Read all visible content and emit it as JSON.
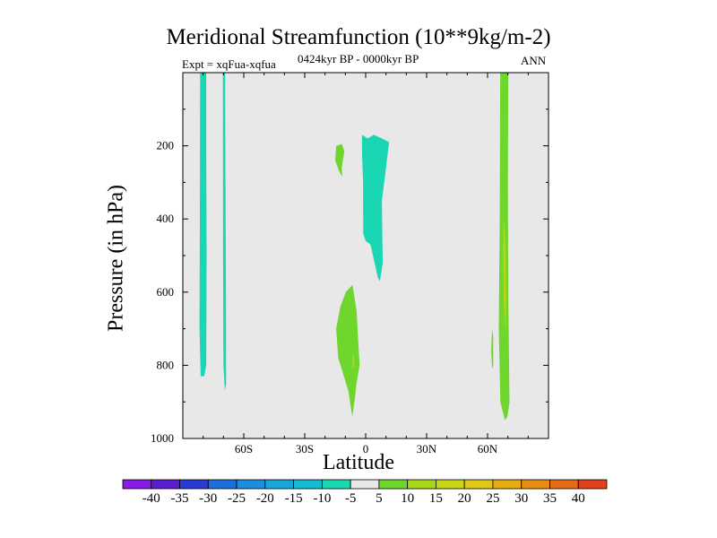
{
  "chart_data": {
    "type": "contour",
    "title": "Meridional Streamfunction (10**9kg/m-2)",
    "subtitle_left": "Expt = xqFua-xqfua",
    "subtitle_center": "0424kyr BP - 0000kyr BP",
    "subtitle_right": "ANN",
    "xlabel": "Latitude",
    "ylabel": "Pressure (in hPa)",
    "xlim": [
      -90,
      90
    ],
    "ylim": [
      1000,
      0
    ],
    "x_ticks": [
      {
        "value": -60,
        "label": "60S"
      },
      {
        "value": -30,
        "label": "30S"
      },
      {
        "value": 0,
        "label": "0"
      },
      {
        "value": 30,
        "label": "30N"
      },
      {
        "value": 60,
        "label": "60N"
      }
    ],
    "y_ticks": [
      {
        "value": 200,
        "label": "200"
      },
      {
        "value": 400,
        "label": "400"
      },
      {
        "value": 600,
        "label": "600"
      },
      {
        "value": 800,
        "label": "800"
      },
      {
        "value": 1000,
        "label": "1000"
      }
    ],
    "background_color": "#e8e8e8",
    "regions": [
      {
        "name": "neg-band-75S",
        "level": -5,
        "color": "#1ad7b3",
        "outline": [
          [
            -81.5,
            0
          ],
          [
            -78.5,
            0
          ],
          [
            -78.5,
            200
          ],
          [
            -78.3,
            500
          ],
          [
            -78.5,
            800
          ],
          [
            -79.5,
            830
          ],
          [
            -81.2,
            830
          ],
          [
            -81.8,
            700
          ],
          [
            -81.6,
            400
          ]
        ]
      },
      {
        "name": "neg-band-68S",
        "level": -5,
        "color": "#1ad7b3",
        "outline": [
          [
            -70.3,
            0
          ],
          [
            -69.2,
            0
          ],
          [
            -69,
            300
          ],
          [
            -68.8,
            600
          ],
          [
            -68.7,
            850
          ],
          [
            -69.3,
            870
          ],
          [
            -70,
            800
          ],
          [
            -70.2,
            500
          ]
        ]
      },
      {
        "name": "neg-upper-equator",
        "level": -5,
        "color": "#1ad7b3",
        "outline": [
          [
            -1.8,
            170
          ],
          [
            1,
            180
          ],
          [
            4,
            170
          ],
          [
            8,
            180
          ],
          [
            11.5,
            190
          ],
          [
            10,
            260
          ],
          [
            8,
            350
          ],
          [
            8.4,
            520
          ],
          [
            7,
            570
          ],
          [
            6,
            560
          ],
          [
            2.4,
            470
          ],
          [
            0,
            460
          ],
          [
            -1.2,
            440
          ],
          [
            -1.3,
            300
          ],
          [
            -1.8,
            220
          ]
        ]
      },
      {
        "name": "pos-upper-15S",
        "level": 5,
        "color": "#6ed62d",
        "outline": [
          [
            -14.5,
            200
          ],
          [
            -11.7,
            195
          ],
          [
            -10.5,
            215
          ],
          [
            -11.8,
            260
          ],
          [
            -11.5,
            285
          ],
          [
            -13,
            270
          ],
          [
            -15,
            240
          ]
        ]
      },
      {
        "name": "pos-lower-10S",
        "level": 5,
        "color": "#6ed62d",
        "outline": [
          [
            -12.5,
            640
          ],
          [
            -9.8,
            600
          ],
          [
            -6.5,
            580
          ],
          [
            -4.5,
            650
          ],
          [
            -3,
            800
          ],
          [
            -4.5,
            850
          ],
          [
            -5.5,
            900
          ],
          [
            -6.6,
            940
          ],
          [
            -8.5,
            870
          ],
          [
            -13.5,
            780
          ],
          [
            -14.5,
            700
          ]
        ]
      },
      {
        "name": "pos-band-68N",
        "level": 5,
        "color": "#6ed62d",
        "outline": [
          [
            66.2,
            0
          ],
          [
            70.2,
            0
          ],
          [
            70,
            300
          ],
          [
            70.2,
            600
          ],
          [
            70.6,
            800
          ],
          [
            70.8,
            900
          ],
          [
            69.8,
            940
          ],
          [
            68.5,
            950
          ],
          [
            66.3,
            900
          ],
          [
            65.5,
            700
          ],
          [
            66,
            400
          ]
        ]
      },
      {
        "name": "pos-sliver-62N",
        "level": 5,
        "color": "#6ed62d",
        "outline": [
          [
            62.2,
            700
          ],
          [
            62.8,
            720
          ],
          [
            62.8,
            800
          ],
          [
            62.2,
            810
          ],
          [
            61.8,
            760
          ]
        ]
      },
      {
        "name": "pos10-core-68N",
        "level": 10,
        "color": "#a8d818",
        "outline": [
          [
            67.8,
            400
          ],
          [
            69,
            460
          ],
          [
            69.3,
            600
          ],
          [
            69,
            700
          ],
          [
            68.3,
            680
          ],
          [
            67.8,
            600
          ],
          [
            67.6,
            480
          ]
        ]
      },
      {
        "name": "pos10-spot-8S",
        "level": 10,
        "color": "#a8d818",
        "outline": [
          [
            -6.6,
            770
          ],
          [
            -5.6,
            778
          ],
          [
            -5.5,
            800
          ],
          [
            -6.6,
            810
          ]
        ]
      }
    ],
    "colorbar": {
      "levels": [
        -40,
        -35,
        -30,
        -25,
        -20,
        -15,
        -10,
        -5,
        5,
        10,
        15,
        20,
        25,
        30,
        35,
        40
      ],
      "labels": [
        "-40",
        "-35",
        "-30",
        "-25",
        "-20",
        "-15",
        "-10",
        "-5",
        "5",
        "10",
        "15",
        "20",
        "25",
        "30",
        "35",
        "40"
      ],
      "colors": [
        "#8a1ae6",
        "#5a1ed0",
        "#2a3ad6",
        "#1a6ede",
        "#1a8ee0",
        "#16a6da",
        "#12bcd4",
        "#1ad7b3",
        "#e8e8e8",
        "#6ed62d",
        "#a8d818",
        "#c8d616",
        "#e0c814",
        "#e6ac10",
        "#e88c10",
        "#e86a12",
        "#e2401a"
      ]
    }
  }
}
